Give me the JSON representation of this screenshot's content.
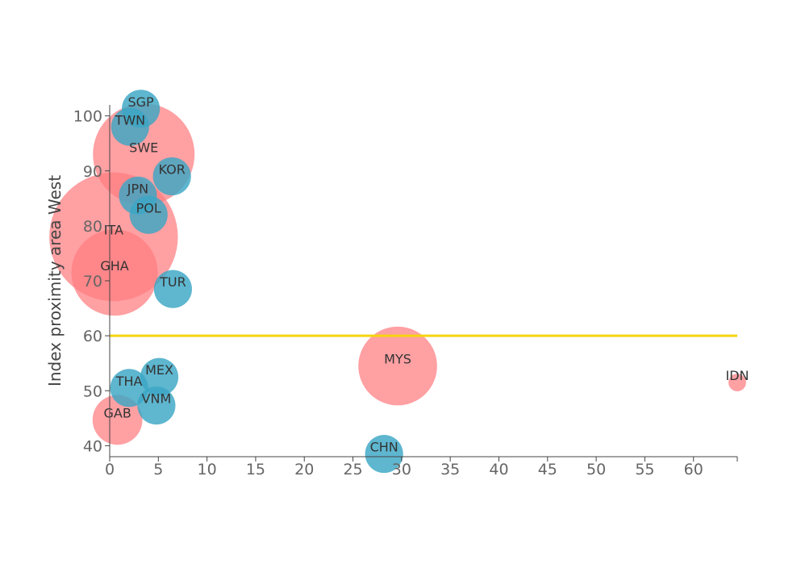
{
  "chart_data": {
    "type": "scatter",
    "subtype": "bubble",
    "xlabel": "",
    "ylabel": "Index proximity area West",
    "xlim": [
      0,
      64.5
    ],
    "ylim": [
      38,
      102
    ],
    "x_ticks": [
      0,
      5,
      10,
      15,
      20,
      25,
      30,
      35,
      40,
      45,
      50,
      55,
      60
    ],
    "y_ticks": [
      40,
      50,
      60,
      70,
      80,
      90,
      100
    ],
    "grid": false,
    "reference_line": {
      "y": 60,
      "color": "#f5d50f"
    },
    "colors": {
      "red": "#ff7b80",
      "blue": "#3aa6c4"
    },
    "points": [
      {
        "label": "SGP",
        "x": 3.2,
        "y": 101.3,
        "size": 14,
        "color": "blue"
      },
      {
        "label": "TWN",
        "x": 2.1,
        "y": 98.0,
        "size": 14,
        "color": "blue"
      },
      {
        "label": "SWE",
        "x": 3.5,
        "y": 93.0,
        "size": 100,
        "color": "red"
      },
      {
        "label": "KOR",
        "x": 6.4,
        "y": 89.0,
        "size": 14,
        "color": "blue"
      },
      {
        "label": "JPN",
        "x": 2.9,
        "y": 85.5,
        "size": 14,
        "color": "blue"
      },
      {
        "label": "POL",
        "x": 4.0,
        "y": 82.0,
        "size": 14,
        "color": "blue"
      },
      {
        "label": "ITA",
        "x": 0.4,
        "y": 78.0,
        "size": 160,
        "color": "red"
      },
      {
        "label": "GHA",
        "x": 0.5,
        "y": 71.5,
        "size": 72,
        "color": "red"
      },
      {
        "label": "TUR",
        "x": 6.5,
        "y": 68.5,
        "size": 14,
        "color": "blue"
      },
      {
        "label": "MYS",
        "x": 29.6,
        "y": 54.5,
        "size": 60,
        "color": "red"
      },
      {
        "label": "IDN",
        "x": 64.5,
        "y": 51.5,
        "size": 3,
        "color": "red"
      },
      {
        "label": "MEX",
        "x": 5.1,
        "y": 52.5,
        "size": 14,
        "color": "blue"
      },
      {
        "label": "THA",
        "x": 2.0,
        "y": 50.5,
        "size": 14,
        "color": "blue"
      },
      {
        "label": "VNM",
        "x": 4.8,
        "y": 47.3,
        "size": 14,
        "color": "blue"
      },
      {
        "label": "GAB",
        "x": 0.8,
        "y": 44.7,
        "size": 24,
        "color": "red"
      },
      {
        "label": "CHN",
        "x": 28.2,
        "y": 38.5,
        "size": 14,
        "color": "blue"
      }
    ]
  }
}
